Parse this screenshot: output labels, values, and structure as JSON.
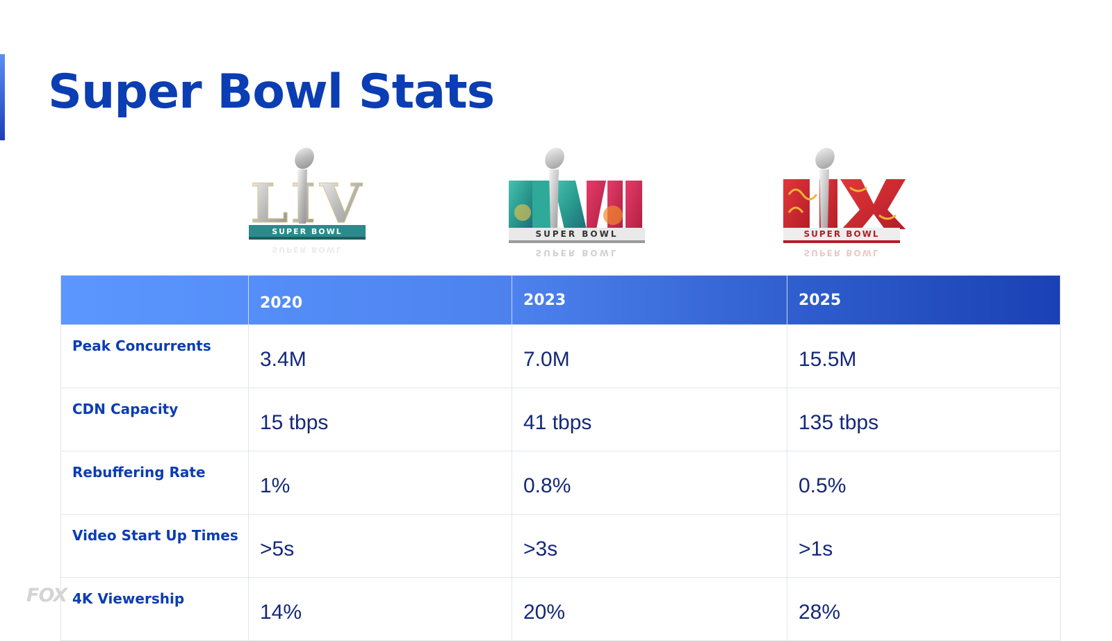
{
  "slide": {
    "title": "Super Bowl Stats"
  },
  "logos": [
    {
      "icon": "super-bowl-liv-logo",
      "numeral": "LIV",
      "wordmark": "SUPER BOWL",
      "colors": [
        "#c9c9c9",
        "#2a8c8c"
      ]
    },
    {
      "icon": "super-bowl-lvii-logo",
      "numeral": "LVII",
      "wordmark": "SUPER BOWL",
      "colors": [
        "#2aa596",
        "#d6305a"
      ]
    },
    {
      "icon": "super-bowl-lix-logo",
      "numeral": "LIX",
      "wordmark": "SUPER BOWL",
      "colors": [
        "#d7262b",
        "#f0b23a"
      ]
    }
  ],
  "table": {
    "columns": [
      "",
      "2020",
      "2023",
      "2025"
    ],
    "rows": [
      {
        "label": "Peak Concurrents",
        "values": [
          "3.4M",
          "7.0M",
          "15.5M"
        ]
      },
      {
        "label": "CDN Capacity",
        "values": [
          "15 tbps",
          "41 tbps",
          "135 tbps"
        ]
      },
      {
        "label": "Rebuffering Rate",
        "values": [
          "1%",
          "0.8%",
          "0.5%"
        ]
      },
      {
        "label": "Video Start Up Times",
        "values": [
          ">5s",
          ">3s",
          ">1s"
        ]
      },
      {
        "label": "4K Viewership",
        "values": [
          "14%",
          "20%",
          "28%"
        ]
      }
    ]
  },
  "footer": {
    "brand": "FOX"
  },
  "colors": {
    "title": "#0b3db3",
    "header_gradient_start": "#5b97ff",
    "header_gradient_end": "#1a41b5",
    "row_label": "#0b3db3",
    "value_text": "#14287a"
  }
}
